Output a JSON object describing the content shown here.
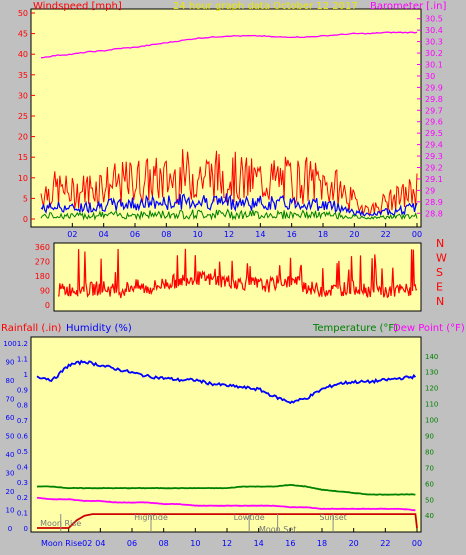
{
  "header": {
    "left_label": "Windspeed [mph]",
    "center_label": "24 hour graph data   October 12 2017",
    "right_label": "Barometer [.in]"
  },
  "panel3_header": {
    "rain_label": "Rainfall (.in)",
    "humidity_label": "Humidity (%)",
    "temp_label": "Temperature (°F)",
    "dew_label": "Dew Point (°F)"
  },
  "colors": {
    "background": "#c0c0c0",
    "plot_bg": "#ffffa8",
    "wind_gust": "#ff0000",
    "wind_avg": "#0000ff",
    "wind_low": "#008000",
    "barometer": "#ff00ff",
    "direction": "#ff0000",
    "humidity": "#0000ff",
    "temperature": "#008000",
    "dew_point": "#ff00ff",
    "rainfall": "#cc0000",
    "moon": "#888888"
  },
  "chart_data": [
    {
      "type": "line",
      "x_ticks": [
        "02",
        "04",
        "06",
        "08",
        "10",
        "12",
        "14",
        "16",
        "18",
        "20",
        "22",
        "00"
      ],
      "wind_axis": {
        "ticks": [
          "0",
          "5",
          "10",
          "15",
          "20",
          "25",
          "30",
          "35",
          "40",
          "45",
          "50"
        ],
        "ylim": [
          0,
          50
        ]
      },
      "baro_axis": {
        "ticks": [
          "28.8",
          "28.9",
          "29",
          "29.1",
          "29.2",
          "29.3",
          "29.4",
          "29.5",
          "29.6",
          "29.7",
          "29.8",
          "29.9",
          "30",
          "30.1",
          "30.2",
          "30.3",
          "30.4",
          "30.5"
        ],
        "ylim": [
          28.75,
          30.55
        ]
      },
      "series": [
        {
          "name": "Windspeed [mph]",
          "color": "#ff0000",
          "hours": [
            0,
            1,
            2,
            3,
            4,
            5,
            6,
            7,
            8,
            9,
            10,
            11,
            12,
            13,
            14,
            15,
            16,
            17,
            18,
            19,
            20,
            21,
            22,
            23,
            24
          ],
          "values": [
            6,
            7,
            6,
            7,
            8,
            8,
            9,
            9,
            9,
            10,
            10,
            10,
            10,
            9,
            9,
            9,
            9,
            9,
            8,
            7,
            4,
            2,
            4,
            5,
            7
          ]
        },
        {
          "name": "Barometer [.in]",
          "color": "#ff00ff",
          "hours": [
            0,
            1,
            2,
            3,
            4,
            5,
            6,
            7,
            8,
            9,
            10,
            11,
            12,
            13,
            14,
            15,
            16,
            17,
            18,
            19,
            20,
            21,
            22,
            23,
            24
          ],
          "values": [
            30.16,
            30.18,
            30.19,
            30.21,
            30.22,
            30.24,
            30.25,
            30.27,
            30.29,
            30.31,
            30.33,
            30.34,
            30.35,
            30.35,
            30.35,
            30.34,
            30.34,
            30.34,
            30.35,
            30.36,
            30.37,
            30.37,
            30.38,
            30.38,
            30.38
          ]
        }
      ]
    },
    {
      "type": "line",
      "x_ticks": [
        "02",
        "04",
        "06",
        "08",
        "10",
        "12",
        "14",
        "16",
        "18",
        "20",
        "22",
        "00"
      ],
      "ylim": [
        0,
        360
      ],
      "y_ticks": [
        "0",
        "90",
        "180",
        "270",
        "360"
      ],
      "compass": [
        "N",
        "W",
        "S",
        "E",
        "N"
      ],
      "series": [
        {
          "name": "Wind direction",
          "color": "#ff0000",
          "hours": [
            0,
            1,
            2,
            3,
            4,
            5,
            6,
            7,
            8,
            9,
            10,
            11,
            12,
            13,
            14,
            15,
            16,
            17,
            18,
            19,
            20,
            21,
            22,
            23,
            24
          ],
          "values": [
            90,
            100,
            95,
            110,
            80,
            120,
            100,
            130,
            150,
            170,
            160,
            150,
            140,
            130,
            120,
            150,
            140,
            100,
            90,
            100,
            110,
            90,
            80,
            90,
            95
          ]
        }
      ]
    },
    {
      "type": "line",
      "x_ticks": [
        "02",
        "04",
        "06",
        "08",
        "10",
        "12",
        "14",
        "16",
        "18",
        "20",
        "22",
        "00"
      ],
      "rain_axis": {
        "ticks": [
          "0",
          "0.1",
          "0.2",
          "0.3",
          "0.4",
          "0.5",
          "0.6",
          "0.7",
          "0.8",
          "0.9",
          "1",
          "1.1",
          "1.2"
        ],
        "ylim": [
          0,
          1.2
        ]
      },
      "humidity_axis": {
        "ticks": [
          "0",
          "10",
          "20",
          "30",
          "40",
          "50",
          "60",
          "70",
          "80",
          "90",
          "100"
        ],
        "ylim": [
          0,
          100
        ]
      },
      "temp_axis": {
        "ticks": [
          "40",
          "50",
          "60",
          "70",
          "80",
          "90",
          "100",
          "110",
          "120",
          "130",
          "140"
        ],
        "ylim": [
          32,
          148
        ]
      },
      "series": [
        {
          "name": "Humidity (%)",
          "color": "#0000ff",
          "hours": [
            0,
            1,
            2,
            3,
            4,
            5,
            6,
            7,
            8,
            9,
            10,
            11,
            12,
            13,
            14,
            15,
            16,
            17,
            18,
            19,
            20,
            21,
            22,
            23,
            24
          ],
          "values": [
            82,
            80,
            88,
            90,
            88,
            86,
            84,
            82,
            81,
            80,
            80,
            78,
            77,
            76,
            75,
            71,
            68,
            70,
            75,
            78,
            79,
            79,
            80,
            81,
            82
          ]
        },
        {
          "name": "Temperature (°F)",
          "color": "#008000",
          "hours": [
            0,
            1,
            2,
            3,
            4,
            5,
            6,
            7,
            8,
            9,
            10,
            11,
            12,
            13,
            14,
            15,
            16,
            17,
            18,
            19,
            20,
            21,
            22,
            23,
            24
          ],
          "values": [
            58,
            58,
            57,
            57,
            57,
            57,
            57,
            57,
            57,
            57,
            57,
            57,
            57,
            58,
            58,
            58,
            59,
            58,
            56,
            55,
            54,
            53,
            53,
            53,
            53
          ]
        },
        {
          "name": "Dew Point (°F)",
          "color": "#ff00ff",
          "hours": [
            0,
            1,
            2,
            3,
            4,
            5,
            6,
            7,
            8,
            9,
            10,
            11,
            12,
            13,
            14,
            15,
            16,
            17,
            18,
            19,
            20,
            21,
            22,
            23,
            24
          ],
          "values": [
            51,
            50,
            50,
            49,
            49,
            48,
            48,
            48,
            47,
            47,
            46,
            46,
            46,
            46,
            46,
            46,
            45,
            45,
            44,
            44,
            44,
            44,
            44,
            44,
            43
          ]
        },
        {
          "name": "Rainfall (.in)",
          "color": "#cc0000",
          "hours": [
            0,
            2,
            2.5,
            3,
            3.5,
            23.9,
            24
          ],
          "values": [
            0,
            0,
            0.05,
            0.08,
            0.09,
            0.09,
            0
          ]
        }
      ],
      "annotations": [
        {
          "text": "Moon Rise",
          "hour": 1.5
        },
        {
          "text": "Hightide",
          "hour": 7.2
        },
        {
          "text": "Lowtide",
          "hour": 13.4
        },
        {
          "text": "Sunset",
          "hour": 18.7
        },
        {
          "text": "Moon Set",
          "hour": 15.2
        }
      ],
      "bottom_label": "Moon Rise02"
    }
  ]
}
